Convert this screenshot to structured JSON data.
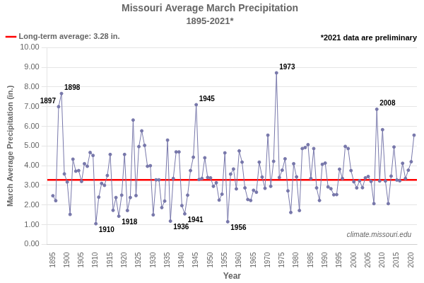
{
  "chart_data": {
    "type": "line",
    "title": "Missouri Average March Precipitation",
    "subtitle": "1895-2021*",
    "x_label": "Year",
    "y_label": "March Average Precipitation (in.)",
    "x": [
      1895,
      1896,
      1897,
      1898,
      1899,
      1900,
      1901,
      1902,
      1903,
      1904,
      1905,
      1906,
      1907,
      1908,
      1909,
      1910,
      1911,
      1912,
      1913,
      1914,
      1915,
      1916,
      1917,
      1918,
      1919,
      1920,
      1921,
      1922,
      1923,
      1924,
      1925,
      1926,
      1927,
      1928,
      1929,
      1930,
      1931,
      1932,
      1933,
      1934,
      1935,
      1936,
      1937,
      1938,
      1939,
      1940,
      1941,
      1942,
      1943,
      1944,
      1945,
      1946,
      1947,
      1948,
      1949,
      1950,
      1951,
      1952,
      1953,
      1954,
      1955,
      1956,
      1957,
      1958,
      1959,
      1960,
      1961,
      1962,
      1963,
      1964,
      1965,
      1966,
      1967,
      1968,
      1969,
      1970,
      1971,
      1972,
      1973,
      1974,
      1975,
      1976,
      1977,
      1978,
      1979,
      1980,
      1981,
      1982,
      1983,
      1984,
      1985,
      1986,
      1987,
      1988,
      1989,
      1990,
      1991,
      1992,
      1993,
      1994,
      1995,
      1996,
      1997,
      1998,
      1999,
      2000,
      2001,
      2002,
      2003,
      2004,
      2005,
      2006,
      2007,
      2008,
      2009,
      2010,
      2011,
      2012,
      2013,
      2014,
      2015,
      2016,
      2017,
      2018,
      2019,
      2020,
      2021
    ],
    "series": [
      {
        "color": "#7777aa",
        "marker": "circle",
        "values": [
          2.47,
          2.22,
          7.0,
          7.67,
          3.58,
          3.17,
          1.52,
          4.33,
          3.72,
          3.75,
          3.2,
          4.1,
          3.97,
          4.67,
          4.52,
          1.05,
          2.4,
          3.1,
          3.0,
          3.5,
          4.57,
          1.73,
          2.38,
          1.43,
          2.5,
          4.57,
          1.72,
          2.38,
          6.32,
          2.48,
          4.97,
          5.77,
          5.03,
          3.97,
          4.0,
          1.5,
          3.28,
          3.28,
          1.87,
          2.2,
          5.3,
          1.18,
          3.35,
          4.7,
          4.7,
          1.97,
          1.55,
          2.5,
          3.75,
          4.43,
          7.1,
          3.3,
          3.35,
          4.4,
          3.4,
          3.38,
          2.95,
          3.13,
          2.25,
          2.55,
          4.65,
          1.15,
          3.57,
          3.83,
          2.82,
          4.75,
          4.18,
          2.87,
          2.28,
          2.23,
          2.75,
          2.65,
          4.18,
          3.42,
          2.85,
          5.55,
          2.95,
          4.22,
          8.72,
          3.4,
          3.77,
          4.35,
          2.72,
          1.62,
          4.1,
          3.43,
          1.72,
          4.87,
          4.92,
          5.07,
          3.35,
          4.87,
          2.87,
          2.23,
          4.07,
          4.13,
          2.92,
          2.83,
          2.52,
          2.53,
          3.82,
          3.35,
          4.98,
          4.87,
          3.75,
          3.18,
          2.87,
          3.23,
          2.88,
          3.38,
          3.45,
          3.2,
          2.07,
          6.87,
          3.22,
          5.83,
          3.22,
          2.07,
          3.47,
          4.95,
          3.27,
          3.23,
          4.12,
          3.35,
          3.77,
          4.2,
          5.55
        ]
      }
    ],
    "average_line": {
      "value": 3.28,
      "label": "Long-term average: 3.28 in.",
      "color": "#ff0000"
    },
    "note": "*2021 data are preliminary",
    "source": "climate.missouri.edu",
    "annotations": [
      {
        "text": "1897",
        "x": 1897,
        "y": 7.0
      },
      {
        "text": "1898",
        "x": 1898,
        "y": 7.67
      },
      {
        "text": "1910",
        "x": 1910,
        "y": 1.05
      },
      {
        "text": "1918",
        "x": 1918,
        "y": 1.43
      },
      {
        "text": "1936",
        "x": 1936,
        "y": 1.18
      },
      {
        "text": "1941",
        "x": 1941,
        "y": 1.55
      },
      {
        "text": "1945",
        "x": 1945,
        "y": 7.1
      },
      {
        "text": "1956",
        "x": 1956,
        "y": 1.15
      },
      {
        "text": "1973",
        "x": 1973,
        "y": 8.72
      },
      {
        "text": "2008",
        "x": 2008,
        "y": 6.87
      }
    ],
    "xlim": [
      1893,
      2022
    ],
    "xticks": [
      1895,
      1900,
      1905,
      1910,
      1915,
      1920,
      1925,
      1930,
      1935,
      1940,
      1945,
      1950,
      1955,
      1960,
      1965,
      1970,
      1975,
      1980,
      1985,
      1990,
      1995,
      2000,
      2005,
      2010,
      2015,
      2020
    ],
    "ylim": [
      0,
      10
    ],
    "yticks": [
      {
        "value": 0,
        "label": "0.00"
      },
      {
        "value": 1,
        "label": "1.00"
      },
      {
        "value": 2,
        "label": "2.00"
      },
      {
        "value": 3,
        "label": "3.00"
      },
      {
        "value": 4,
        "label": "4.00"
      },
      {
        "value": 5,
        "label": "5.00"
      },
      {
        "value": 6,
        "label": "6.00"
      },
      {
        "value": 7,
        "label": "7.00"
      },
      {
        "value": 8,
        "label": "8.00"
      },
      {
        "value": 9,
        "label": "9.00"
      },
      {
        "value": 10,
        "label": "10.00"
      }
    ],
    "grid": "y"
  }
}
